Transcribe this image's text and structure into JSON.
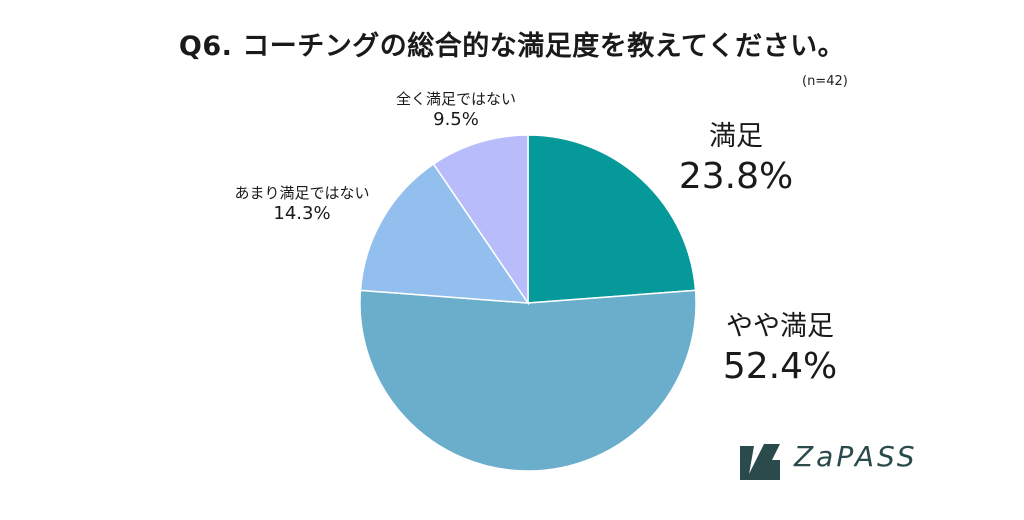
{
  "chart_data": {
    "type": "pie",
    "title": "Q6. コーチングの総合的な満足度を教えてください。",
    "note": "(n=42)",
    "slices": [
      {
        "label": "満足",
        "value": 23.8,
        "display": "23.8%",
        "color": "#05999a"
      },
      {
        "label": "やや満足",
        "value": 52.4,
        "display": "52.4%",
        "color": "#6aaecb"
      },
      {
        "label": "あまり満足ではない",
        "value": 14.3,
        "display": "14.3%",
        "color": "#93bfee"
      },
      {
        "label": "全く満足ではない",
        "value": 9.5,
        "display": "9.5%",
        "color": "#b9bcfb"
      }
    ]
  },
  "logo": {
    "text": "ZaPASS",
    "color": "#2b4a4c"
  }
}
